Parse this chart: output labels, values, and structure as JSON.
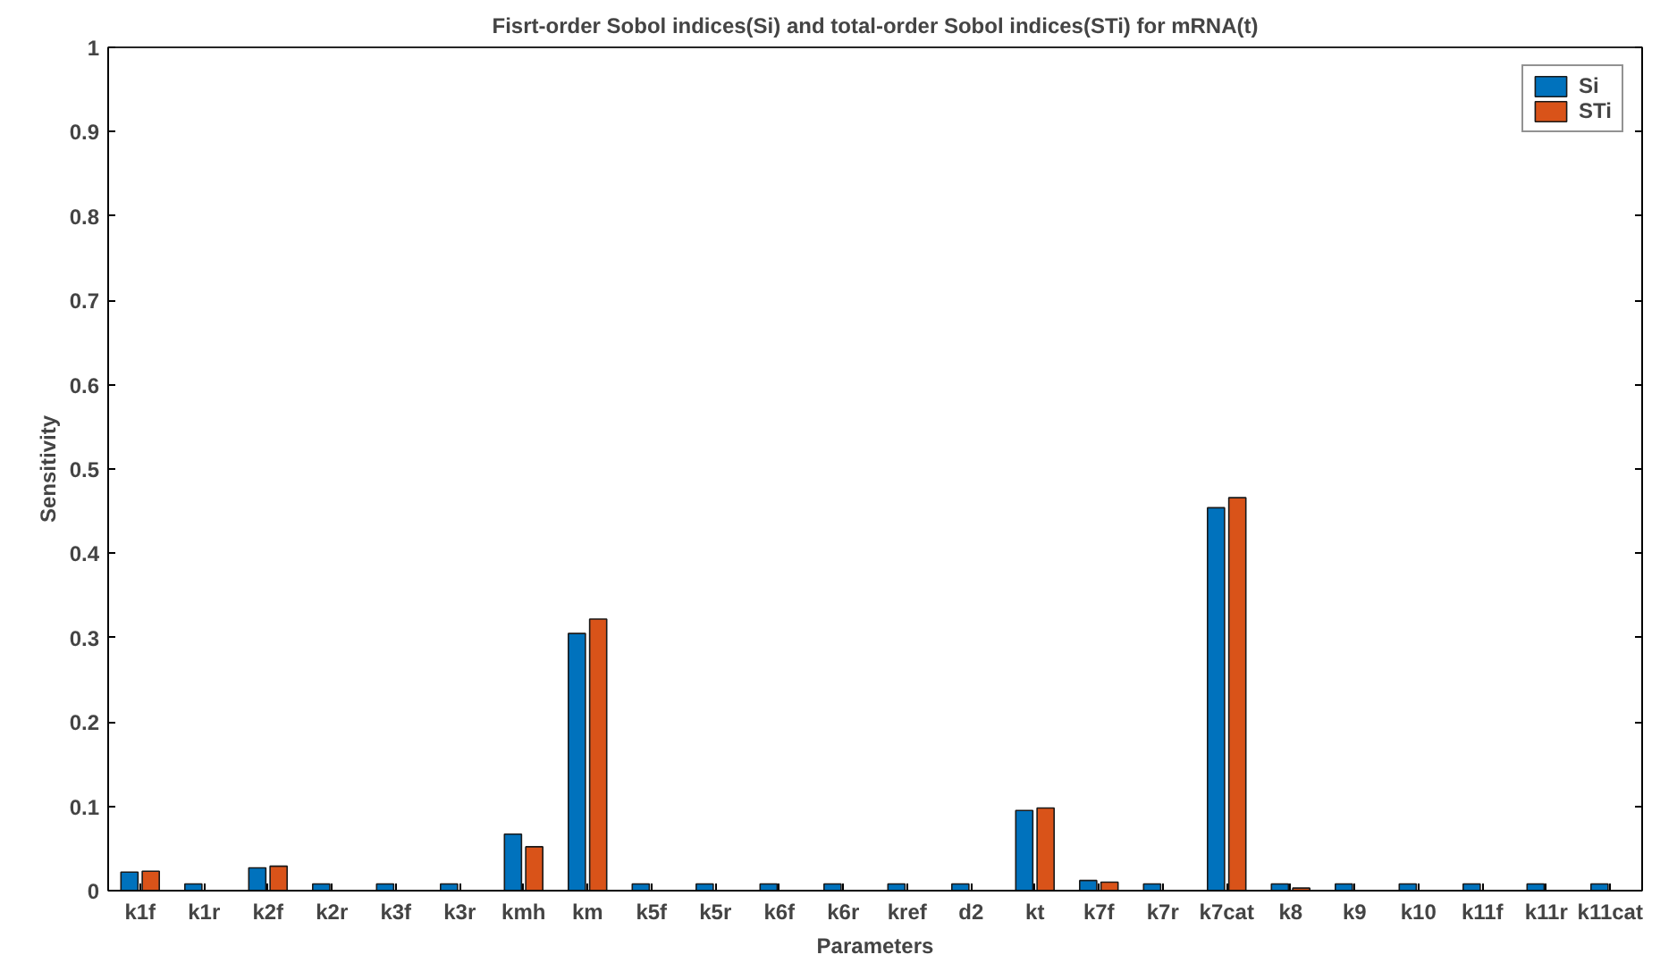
{
  "chart_data": {
    "type": "bar",
    "title": "Fisrt-order Sobol indices(Si) and total-order Sobol indices(STi) for mRNA(t)",
    "xlabel": "Parameters",
    "ylabel": "Sensitivity",
    "categories": [
      "k1f",
      "k1r",
      "k2f",
      "k2r",
      "k3f",
      "k3r",
      "kmh",
      "km",
      "k5f",
      "k5r",
      "k6f",
      "k6r",
      "kref",
      "d2",
      "kt",
      "k7f",
      "k7r",
      "k7cat",
      "k8",
      "k9",
      "k10",
      "k11f",
      "k11r",
      "k11cat"
    ],
    "series": [
      {
        "name": "Si",
        "color": "#0072bd",
        "values": [
          0.022,
          0.008,
          0.027,
          0.008,
          0.008,
          0.008,
          0.067,
          0.305,
          0.008,
          0.008,
          0.008,
          0.008,
          0.008,
          0.008,
          0.095,
          0.012,
          0.008,
          0.454,
          0.008,
          0.008,
          0.008,
          0.008,
          0.008,
          0.008
        ]
      },
      {
        "name": "STi",
        "color": "#d95319",
        "values": [
          0.023,
          null,
          0.029,
          null,
          null,
          null,
          0.052,
          0.322,
          null,
          null,
          null,
          null,
          null,
          null,
          0.098,
          0.01,
          null,
          0.466,
          0.003,
          null,
          null,
          null,
          null,
          null
        ]
      }
    ],
    "ylim": [
      0,
      1
    ],
    "yticks": [
      0,
      0.1,
      0.2,
      0.3,
      0.4,
      0.5,
      0.6,
      0.7,
      0.8,
      0.9,
      1
    ],
    "grid": false,
    "legend": "top right"
  }
}
